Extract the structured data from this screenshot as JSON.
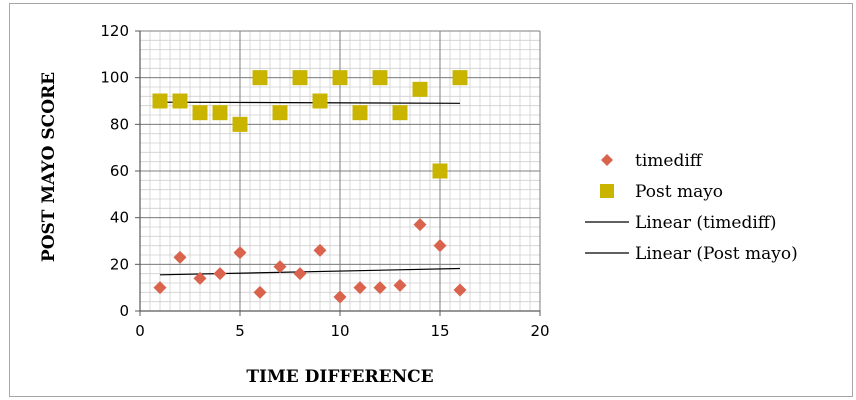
{
  "chart_data": {
    "type": "scatter",
    "title": "",
    "xlabel": "TIME DIFFERENCE",
    "ylabel": "POST MAYO SCORE",
    "xlim": [
      0,
      20
    ],
    "ylim": [
      0,
      120
    ],
    "x_ticks": [
      0,
      5,
      10,
      15,
      20
    ],
    "y_ticks": [
      0,
      20,
      40,
      60,
      80,
      100,
      120
    ],
    "minor_grid": true,
    "major_grid": true,
    "legend_position": "right",
    "series": [
      {
        "name": "timediff",
        "marker": "diamond",
        "color": "#d9634d",
        "x": [
          1,
          2,
          3,
          4,
          5,
          6,
          7,
          8,
          9,
          10,
          11,
          12,
          13,
          14,
          15,
          16
        ],
        "y": [
          10,
          23,
          14,
          16,
          25,
          8,
          19,
          16,
          26,
          6,
          10,
          10,
          11,
          37,
          28,
          9
        ]
      },
      {
        "name": "Post mayo",
        "marker": "square",
        "color": "#c9b400",
        "x": [
          1,
          2,
          3,
          4,
          5,
          6,
          7,
          8,
          9,
          10,
          11,
          12,
          13,
          14,
          15,
          16
        ],
        "y": [
          90,
          90,
          85,
          85,
          80,
          100,
          85,
          100,
          90,
          100,
          85,
          100,
          85,
          95,
          60,
          100
        ]
      }
    ],
    "trendlines": [
      {
        "name": "Linear (timediff)",
        "x": [
          1,
          16
        ],
        "y": [
          15.5,
          18.2
        ],
        "color": "#000000"
      },
      {
        "name": "Linear (Post mayo)",
        "x": [
          1,
          16
        ],
        "y": [
          89.5,
          89.0
        ],
        "color": "#000000"
      }
    ]
  }
}
